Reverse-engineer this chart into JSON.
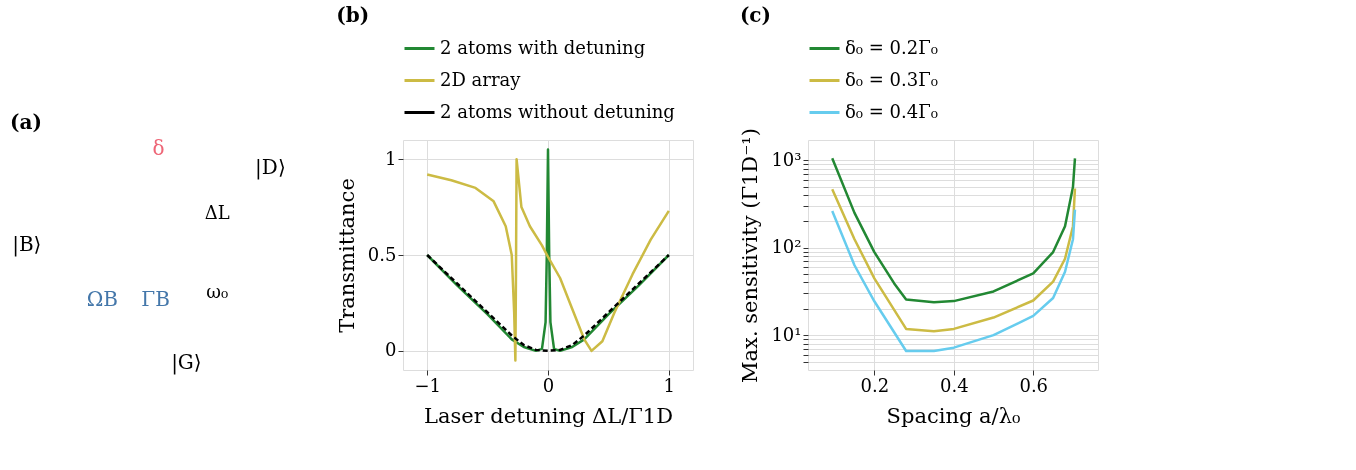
{
  "chart_data": [
    {
      "type": "other",
      "title": "(a)",
      "annotations": [
        "|D⟩",
        "ΔL",
        "|B⟩",
        "δ",
        "ΩB",
        "ΓB",
        "ω₀",
        "|G⟩"
      ]
    },
    {
      "type": "line",
      "title": "(b)",
      "xlabel": "Laser detuning ΔL/Γ1D",
      "ylabel": "Transmittance",
      "xlim": [
        -1.2,
        1.2
      ],
      "ylim": [
        -0.1,
        1.1
      ],
      "xticks": [
        -1,
        0,
        1
      ],
      "yticks": [
        0,
        0.5,
        1
      ],
      "grid": true,
      "legend": "top",
      "line_style": "solid",
      "series": [
        {
          "name": "2 atoms with detuning",
          "color": "#228833",
          "x": [
            -1,
            -0.75,
            -0.5,
            -0.3,
            -0.2,
            -0.1,
            -0.05,
            -0.02,
            -0.01,
            0,
            0.01,
            0.02,
            0.05,
            0.1,
            0.2,
            0.3,
            0.5,
            0.75,
            1
          ],
          "values": [
            0.5,
            0.34,
            0.19,
            0.06,
            0.02,
            0,
            0.01,
            0.15,
            0.5,
            1.05,
            0.5,
            0.15,
            0.01,
            0,
            0.02,
            0.06,
            0.19,
            0.34,
            0.5
          ]
        },
        {
          "name": "2D array",
          "color": "#ccbb44",
          "x": [
            -1,
            -0.8,
            -0.6,
            -0.45,
            -0.35,
            -0.3,
            -0.28,
            -0.27,
            -0.265,
            -0.26,
            -0.22,
            -0.15,
            -0.05,
            0,
            0.1,
            0.2,
            0.3,
            0.36,
            0.45,
            0.55,
            0.7,
            0.85,
            1
          ],
          "values": [
            0.92,
            0.89,
            0.85,
            0.78,
            0.65,
            0.5,
            0.2,
            -0.05,
            0.4,
            1.0,
            0.75,
            0.65,
            0.55,
            0.49,
            0.38,
            0.22,
            0.06,
            0,
            0.05,
            0.2,
            0.4,
            0.58,
            0.73
          ]
        },
        {
          "name": "2 atoms without detuning",
          "color": "#000000",
          "line_style": "dashed",
          "x": [
            -1,
            -0.75,
            -0.5,
            -0.3,
            -0.2,
            -0.1,
            0,
            0.1,
            0.2,
            0.3,
            0.5,
            0.75,
            1
          ],
          "values": [
            0.5,
            0.35,
            0.2,
            0.08,
            0.03,
            0.005,
            0,
            0.005,
            0.03,
            0.08,
            0.2,
            0.35,
            0.5
          ]
        }
      ]
    },
    {
      "type": "line",
      "title": "(c)",
      "xlabel": "Spacing a/λ₀",
      "ylabel": "Max. sensitivity (Γ1D⁻¹)",
      "log": "y",
      "xlim": [
        0.033,
        0.763
      ],
      "ylim": [
        4,
        1700
      ],
      "xticks": [
        0.2,
        0.4,
        0.6
      ],
      "yticks": [
        {
          "value": 5,
          "label": null
        },
        {
          "value": 6,
          "label": null
        },
        {
          "value": 7,
          "label": null
        },
        {
          "value": 8,
          "label": null
        },
        {
          "value": 9,
          "label": null
        },
        {
          "value": 10,
          "label": "10¹"
        },
        {
          "value": 20,
          "label": null
        },
        {
          "value": 30,
          "label": null
        },
        {
          "value": 40,
          "label": null
        },
        {
          "value": 50,
          "label": null
        },
        {
          "value": 60,
          "label": null
        },
        {
          "value": 70,
          "label": null
        },
        {
          "value": 80,
          "label": null
        },
        {
          "value": 90,
          "label": null
        },
        {
          "value": 100,
          "label": "10²"
        },
        {
          "value": 200,
          "label": null
        },
        {
          "value": 300,
          "label": null
        },
        {
          "value": 400,
          "label": null
        },
        {
          "value": 500,
          "label": null
        },
        {
          "value": 600,
          "label": null
        },
        {
          "value": 700,
          "label": null
        },
        {
          "value": 800,
          "label": null
        },
        {
          "value": 900,
          "label": null
        },
        {
          "value": 1000,
          "label": "10³"
        }
      ],
      "grid": true,
      "legend": "top",
      "line_style": "solid",
      "series": [
        {
          "name": "δ₀ = 0.2Γ₀",
          "color": "#228833",
          "x": [
            0.094,
            0.15,
            0.2,
            0.25,
            0.28,
            0.35,
            0.4,
            0.5,
            0.6,
            0.65,
            0.68,
            0.7,
            0.705
          ],
          "values": [
            1050,
            250,
            89,
            39,
            25.5,
            23.8,
            24.5,
            31.6,
            50.8,
            89,
            176,
            494,
            1050
          ]
        },
        {
          "name": "δ₀ = 0.3Γ₀",
          "color": "#ccbb44",
          "x": [
            0.094,
            0.15,
            0.2,
            0.28,
            0.35,
            0.4,
            0.5,
            0.6,
            0.65,
            0.68,
            0.7,
            0.705
          ],
          "values": [
            466,
            125,
            44.6,
            11.8,
            11.1,
            11.8,
            15.9,
            24.9,
            41,
            74.7,
            176,
            474
          ]
        },
        {
          "name": "δ₀ = 0.4Γ₀",
          "color": "#66ccee",
          "x": [
            0.094,
            0.15,
            0.2,
            0.28,
            0.35,
            0.4,
            0.5,
            0.6,
            0.65,
            0.68,
            0.7,
            0.705
          ],
          "values": [
            263,
            63,
            24.4,
            6.6,
            6.6,
            7.2,
            10,
            16.6,
            26.6,
            53,
            125,
            272
          ]
        }
      ]
    }
  ]
}
